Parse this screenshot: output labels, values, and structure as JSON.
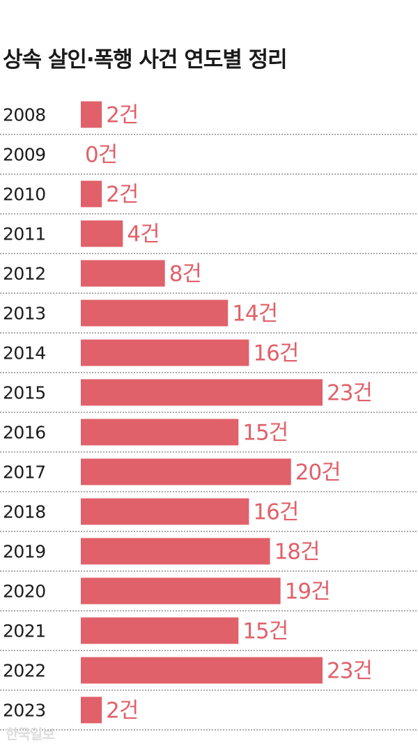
{
  "title": "상속 살인·폭행 사건 연도별 정리",
  "watermark": "한국일보",
  "colors": {
    "bar": "#e0616a",
    "value_text": "#e0616a",
    "year_text": "#1a1a1a",
    "divider": "#555555"
  },
  "chart_data": {
    "type": "bar",
    "orientation": "horizontal",
    "title": "상속 살인·폭행 사건 연도별 정리",
    "categories": [
      "2008",
      "2009",
      "2010",
      "2011",
      "2012",
      "2013",
      "2014",
      "2015",
      "2016",
      "2017",
      "2018",
      "2019",
      "2020",
      "2021",
      "2022",
      "2023"
    ],
    "values": [
      2,
      0,
      2,
      4,
      8,
      14,
      16,
      23,
      15,
      20,
      16,
      18,
      19,
      15,
      23,
      2
    ],
    "value_unit": "건",
    "value_labels": [
      "2건",
      "0건",
      "2건",
      "4건",
      "8건",
      "14건",
      "16건",
      "23건",
      "15건",
      "20건",
      "16건",
      "18건",
      "19건",
      "15건",
      "23건",
      "2건"
    ],
    "xlim": [
      0,
      23
    ],
    "grid": false,
    "legend": "none"
  }
}
